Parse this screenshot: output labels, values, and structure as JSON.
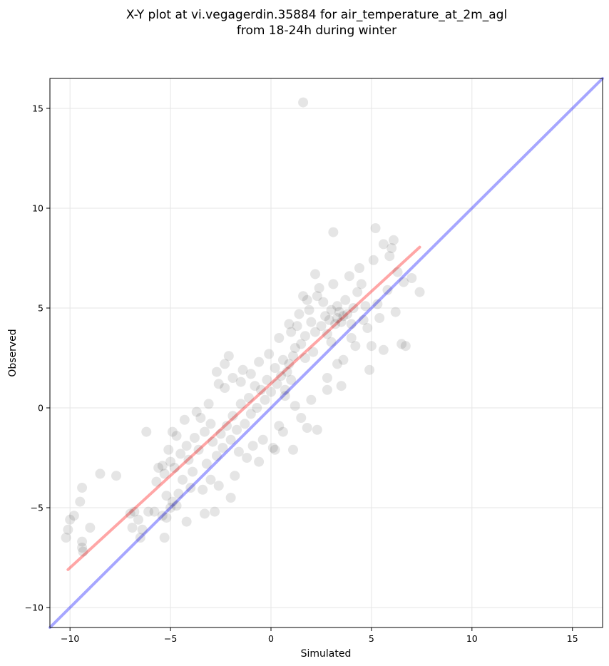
{
  "chart_data": {
    "type": "scatter",
    "title_lines": [
      "X-Y plot at vi.vegagerdin.35884 for air_temperature_at_2m_agl",
      "from 18-24h during winter"
    ],
    "xlabel": "Simulated",
    "ylabel": "Observed",
    "xlim": [
      -11,
      16.5
    ],
    "ylim": [
      -11,
      16.5
    ],
    "xticks": [
      -10,
      -5,
      0,
      5,
      10,
      15
    ],
    "yticks": [
      -10,
      -5,
      0,
      5,
      10,
      15
    ],
    "xtick_labels": [
      "−10",
      "−5",
      "0",
      "5",
      "10",
      "15"
    ],
    "ytick_labels": [
      "−10",
      "−5",
      "0",
      "5",
      "10",
      "15"
    ],
    "grid": true,
    "point_color": "#000000",
    "point_alpha": 0.1,
    "identity_line": {
      "color": "#0000ff",
      "alpha": 0.35,
      "x": [
        -11,
        16.5
      ],
      "y": [
        -11,
        16.5
      ]
    },
    "fit_line": {
      "color": "#ff0000",
      "alpha": 0.35,
      "x": [
        -10.1,
        7.4
      ],
      "y": [
        -8.1,
        8.05
      ]
    },
    "points": [
      [
        -10.2,
        -6.5
      ],
      [
        -10.1,
        -6.1
      ],
      [
        -10.0,
        -5.6
      ],
      [
        -9.8,
        -5.4
      ],
      [
        -9.5,
        -4.7
      ],
      [
        -9.4,
        -4.0
      ],
      [
        -9.4,
        -6.7
      ],
      [
        -9.4,
        -7.0
      ],
      [
        -9.35,
        -7.2
      ],
      [
        -9.0,
        -6.0
      ],
      [
        -8.5,
        -3.3
      ],
      [
        -7.7,
        -3.4
      ],
      [
        -7.0,
        -5.3
      ],
      [
        -6.9,
        -6.0
      ],
      [
        -6.8,
        -5.2
      ],
      [
        -6.6,
        -5.6
      ],
      [
        -6.5,
        -6.5
      ],
      [
        -6.4,
        -6.1
      ],
      [
        -6.2,
        -1.2
      ],
      [
        -6.1,
        -5.2
      ],
      [
        -5.8,
        -5.2
      ],
      [
        -5.4,
        -5.4
      ],
      [
        -5.3,
        -6.5
      ],
      [
        -5.2,
        -5.5
      ],
      [
        -5.0,
        -5.0
      ],
      [
        -4.9,
        -4.7
      ],
      [
        -4.7,
        -4.9
      ],
      [
        -4.2,
        -5.7
      ],
      [
        -3.3,
        -5.3
      ],
      [
        -2.8,
        -5.2
      ],
      [
        -2.0,
        -4.5
      ],
      [
        -1.5,
        1.3
      ],
      [
        -1.0,
        1.7
      ],
      [
        -0.6,
        -2.7
      ],
      [
        0.2,
        -2.1
      ],
      [
        0.7,
        0.9
      ],
      [
        1.1,
        -2.1
      ],
      [
        1.8,
        -1.0
      ],
      [
        2.3,
        -1.1
      ],
      [
        2.8,
        0.9
      ],
      [
        3.1,
        8.8
      ],
      [
        3.3,
        2.2
      ],
      [
        3.5,
        1.1
      ],
      [
        4.0,
        3.5
      ],
      [
        4.9,
        1.9
      ],
      [
        5.0,
        3.1
      ],
      [
        5.6,
        2.9
      ],
      [
        1.6,
        15.3
      ],
      [
        5.2,
        9.0
      ],
      [
        5.6,
        8.2
      ],
      [
        6.0,
        8.0
      ],
      [
        6.1,
        8.4
      ],
      [
        6.5,
        3.2
      ],
      [
        6.7,
        3.1
      ],
      [
        6.6,
        6.3
      ],
      [
        7.0,
        6.5
      ],
      [
        7.4,
        5.8
      ],
      [
        6.2,
        4.8
      ],
      [
        5.4,
        4.5
      ],
      [
        4.6,
        4.4
      ],
      [
        4.1,
        5.0
      ],
      [
        3.8,
        4.7
      ],
      [
        3.6,
        4.6
      ],
      [
        3.5,
        4.3
      ],
      [
        3.4,
        4.8
      ],
      [
        3.3,
        4.5
      ],
      [
        3.2,
        4.2
      ],
      [
        3.0,
        4.9
      ],
      [
        2.9,
        4.4
      ],
      [
        2.7,
        4.6
      ],
      [
        2.6,
        5.3
      ],
      [
        2.5,
        4.1
      ],
      [
        2.3,
        5.6
      ],
      [
        2.2,
        3.8
      ],
      [
        2.0,
        4.3
      ],
      [
        1.9,
        4.9
      ],
      [
        1.7,
        3.6
      ],
      [
        1.6,
        5.6
      ],
      [
        1.5,
        3.2
      ],
      [
        1.3,
        4.1
      ],
      [
        1.2,
        3.0
      ],
      [
        1.1,
        2.6
      ],
      [
        1.0,
        3.8
      ],
      [
        0.9,
        2.2
      ],
      [
        0.8,
        1.8
      ],
      [
        0.6,
        2.4
      ],
      [
        0.5,
        1.6
      ],
      [
        0.3,
        1.2
      ],
      [
        0.2,
        2.0
      ],
      [
        0.0,
        0.8
      ],
      [
        -0.2,
        1.4
      ],
      [
        -0.3,
        0.4
      ],
      [
        -0.5,
        0.9
      ],
      [
        -0.7,
        0.0
      ],
      [
        -0.8,
        1.1
      ],
      [
        -1.0,
        -0.3
      ],
      [
        -1.1,
        0.5
      ],
      [
        -1.3,
        -0.8
      ],
      [
        -1.5,
        0.2
      ],
      [
        -1.7,
        -1.1
      ],
      [
        -1.9,
        -0.4
      ],
      [
        -2.0,
        -1.6
      ],
      [
        -2.2,
        -0.9
      ],
      [
        -2.4,
        -2.0
      ],
      [
        -2.5,
        -1.3
      ],
      [
        -2.7,
        -2.4
      ],
      [
        -2.9,
        -1.7
      ],
      [
        -3.0,
        -0.8
      ],
      [
        -3.2,
        -2.8
      ],
      [
        -3.3,
        -1.2
      ],
      [
        -3.5,
        -0.5
      ],
      [
        -3.6,
        -2.1
      ],
      [
        -3.8,
        -1.5
      ],
      [
        -3.9,
        -3.2
      ],
      [
        -4.1,
        -2.6
      ],
      [
        -4.2,
        -1.9
      ],
      [
        -4.4,
        -3.6
      ],
      [
        -4.5,
        -2.3
      ],
      [
        -4.7,
        -1.4
      ],
      [
        -4.8,
        -3.0
      ],
      [
        -5.0,
        -2.7
      ],
      [
        -5.1,
        -2.1
      ],
      [
        -5.3,
        -3.3
      ],
      [
        -5.4,
        -2.9
      ],
      [
        -5.6,
        -3.0
      ],
      [
        -4.6,
        -4.3
      ],
      [
        -3.4,
        -4.1
      ],
      [
        -2.6,
        -3.9
      ],
      [
        -1.8,
        -3.4
      ],
      [
        -1.2,
        -2.5
      ],
      [
        -0.4,
        -1.6
      ],
      [
        0.4,
        -0.9
      ],
      [
        1.2,
        0.1
      ],
      [
        2.0,
        0.4
      ],
      [
        2.8,
        1.5
      ],
      [
        3.6,
        2.4
      ],
      [
        4.2,
        3.1
      ],
      [
        4.8,
        4.0
      ],
      [
        5.3,
        5.2
      ],
      [
        5.8,
        5.9
      ],
      [
        6.3,
        6.8
      ],
      [
        5.9,
        7.6
      ],
      [
        5.1,
        7.4
      ],
      [
        4.4,
        7.0
      ],
      [
        3.9,
        6.6
      ],
      [
        3.1,
        6.2
      ],
      [
        2.4,
        6.0
      ],
      [
        2.2,
        6.7
      ],
      [
        1.8,
        5.4
      ],
      [
        1.4,
        4.7
      ],
      [
        0.9,
        4.2
      ],
      [
        0.4,
        3.5
      ],
      [
        -0.1,
        2.7
      ],
      [
        -0.6,
        2.3
      ],
      [
        -1.4,
        1.9
      ],
      [
        -1.9,
        1.5
      ],
      [
        -2.3,
        1.0
      ],
      [
        -2.7,
        1.8
      ],
      [
        -3.1,
        0.2
      ],
      [
        -3.7,
        -0.2
      ],
      [
        -4.3,
        -0.6
      ],
      [
        -4.9,
        -1.2
      ],
      [
        -2.1,
        2.6
      ],
      [
        -2.3,
        2.2
      ],
      [
        -2.6,
        1.2
      ],
      [
        0.1,
        -2.0
      ],
      [
        0.6,
        -1.2
      ],
      [
        1.5,
        -0.5
      ],
      [
        3.3,
        5.1
      ],
      [
        3.7,
        5.4
      ],
      [
        4.0,
        4.2
      ],
      [
        4.3,
        5.8
      ],
      [
        4.5,
        6.2
      ],
      [
        4.7,
        5.1
      ],
      [
        2.8,
        3.7
      ],
      [
        3.0,
        3.3
      ],
      [
        2.1,
        2.8
      ],
      [
        1.7,
        2.5
      ],
      [
        1.0,
        1.4
      ],
      [
        0.7,
        0.6
      ],
      [
        -0.9,
        -1.9
      ],
      [
        -1.6,
        -2.2
      ],
      [
        -3.0,
        -3.6
      ],
      [
        -4.0,
        -4.0
      ],
      [
        -5.2,
        -4.4
      ],
      [
        -5.7,
        -3.7
      ]
    ]
  }
}
